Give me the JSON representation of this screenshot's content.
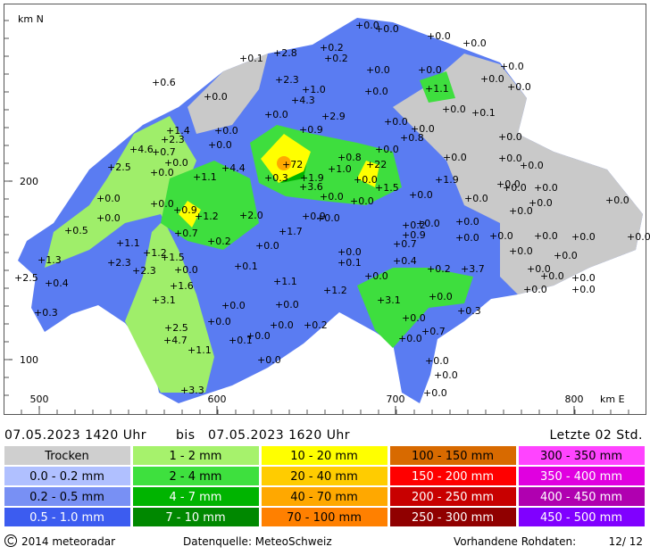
{
  "map": {
    "y_axis_label": "km N",
    "x_axis_label": "km E",
    "y_labels": [
      "200",
      "100"
    ],
    "x_labels": [
      "500",
      "600",
      "700",
      "800"
    ],
    "stations": [
      "+0.0",
      "+0.0",
      "+0.0",
      "+0.0",
      "+0.2",
      "+2.8",
      "+0.2",
      "+0.1",
      "+0.0",
      "+0.0",
      "+0.0",
      "+0.0",
      "+0.0",
      "+0.6",
      "+2.3",
      "+1.0",
      "+0.0",
      "+1.1",
      "+0.0",
      "+4.3",
      "+0.0",
      "+0.1",
      "+0.0",
      "+2.9",
      "+0.0",
      "+1.4",
      "+0.0",
      "+0.9",
      "+0.8",
      "+0.0",
      "+0.0",
      "+2.3",
      "+0.0",
      "+4.6",
      "+0.7",
      "+0.0",
      "+0.8",
      "+0.0",
      "+0.0",
      "+2.5",
      "+0.0",
      "+72",
      "+4.4",
      "+1.0",
      "+22",
      "+0.0",
      "+0.0",
      "+1.1",
      "+0.3",
      "+1.9",
      "+0.0",
      "+1.9",
      "+0.0",
      "+3.6",
      "+1.5",
      "+0.0",
      "+0.0",
      "+0.0",
      "+0.0",
      "+0.0",
      "+0.0",
      "+0.0",
      "+0.0",
      "+0.0",
      "+0.0",
      "+0.9",
      "+1.2",
      "+2.0",
      "+0.9",
      "+0.0",
      "+0.0",
      "+0.0",
      "+0.2",
      "+0.0",
      "+0.0",
      "+0.5",
      "+0.7",
      "+0.2",
      "+1.7",
      "+0.9",
      "+0.0",
      "+0.0",
      "+0.0",
      "+1.1",
      "+0.0",
      "+0.0",
      "+0.0",
      "+0.7",
      "+0.0",
      "+1.2",
      "+1.5",
      "+1.3",
      "+2.3",
      "+0.1",
      "+0.1",
      "+0.4",
      "+0.0",
      "+0.0",
      "+0.0",
      "+2.3",
      "+0.2",
      "+3.7",
      "+0.0",
      "+2.5",
      "+0.4",
      "+0.0",
      "+0.0",
      "+0.0",
      "+1.1",
      "+1.6",
      "+0.0",
      "+0.0",
      "+1.2",
      "+0.0",
      "+3.1",
      "+3.1",
      "+0.0",
      "+0.0",
      "+0.3",
      "+0.3",
      "+0.0",
      "+0.0",
      "+0.0",
      "+0.2",
      "+2.5",
      "+0.7",
      "+0.0",
      "+0.1",
      "+0.0",
      "+4.7",
      "+1.1",
      "+0.0",
      "+0.0",
      "+0.0",
      "+3.3",
      "+0.0"
    ]
  },
  "header": {
    "start": "07.05.2023 1420 Uhr",
    "between": "bis",
    "end": "07.05.2023 1620 Uhr",
    "period": "Letzte 02 Std."
  },
  "legend": {
    "rows": [
      [
        {
          "label": "Trocken",
          "color": "#cfcfcf"
        },
        {
          "label": "1 - 2 mm",
          "color": "#a6f26c"
        },
        {
          "label": "10 - 20 mm",
          "color": "#ffff00"
        },
        {
          "label": "100 - 150 mm",
          "color": "#d86a00"
        },
        {
          "label": "300 - 350 mm",
          "color": "#ff44ff"
        }
      ],
      [
        {
          "label": "0.0 - 0.2 mm",
          "color": "#b0c0ff"
        },
        {
          "label": "2 - 4 mm",
          "color": "#3ee03e"
        },
        {
          "label": "20 - 40 mm",
          "color": "#ffcc00"
        },
        {
          "label": "150 - 200 mm",
          "color": "#ff0000"
        },
        {
          "label": "350 - 400 mm",
          "color": "#e000e0"
        }
      ],
      [
        {
          "label": "0.2 - 0.5 mm",
          "color": "#7890f4"
        },
        {
          "label": "4 - 7 mm",
          "color": "#00b400"
        },
        {
          "label": "40 - 70 mm",
          "color": "#ffa800"
        },
        {
          "label": "200 - 250 mm",
          "color": "#c80000"
        },
        {
          "label": "400 - 450 mm",
          "color": "#b000b0"
        }
      ],
      [
        {
          "label": "0.5 - 1.0 mm",
          "color": "#3c5cf0"
        },
        {
          "label": "7 - 10 mm",
          "color": "#008800"
        },
        {
          "label": "70 - 100 mm",
          "color": "#ff8000"
        },
        {
          "label": "250 - 300 mm",
          "color": "#900000"
        },
        {
          "label": "450 - 500 mm",
          "color": "#8000ff"
        }
      ]
    ]
  },
  "footer": {
    "copyright": "2014 meteoradar",
    "source": "Datenquelle: MeteoSchweiz",
    "raw_label": "Vorhandene Rohdaten:",
    "raw_value": "12/ 12"
  }
}
